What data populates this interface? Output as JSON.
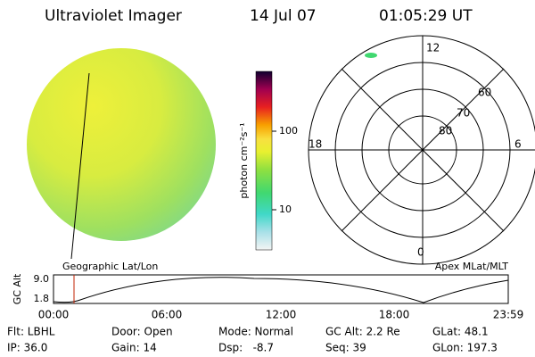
{
  "header": {
    "title": "Ultraviolet Imager",
    "date": "14 Jul 07",
    "time": "01:05:29 UT"
  },
  "image": {
    "caption": "Geographic Lat/Lon"
  },
  "colorbar": {
    "label": "photon cm⁻²s⁻¹",
    "ticks": [
      "100",
      "10"
    ]
  },
  "polar": {
    "caption": "Apex MLat/MLT",
    "hours": [
      "12",
      "18",
      "6",
      "0"
    ],
    "lats": [
      "60",
      "70",
      "80"
    ]
  },
  "altitude": {
    "label": "GC Alt",
    "ticks": [
      "9.0",
      "1.8"
    ],
    "times": [
      "00:00",
      "06:00",
      "12:00",
      "18:00",
      "23:59"
    ]
  },
  "footer": [
    [
      "Flt: LBHL",
      "IP: 36.0"
    ],
    [
      "Door: Open",
      "Gain: 14"
    ],
    [
      "Mode: Normal",
      "Dsp:   -8.7"
    ],
    [
      "GC Alt: 2.2 Re",
      "Seq: 39"
    ],
    [
      "GLat: 48.1",
      "GLon: 197.3"
    ]
  ]
}
